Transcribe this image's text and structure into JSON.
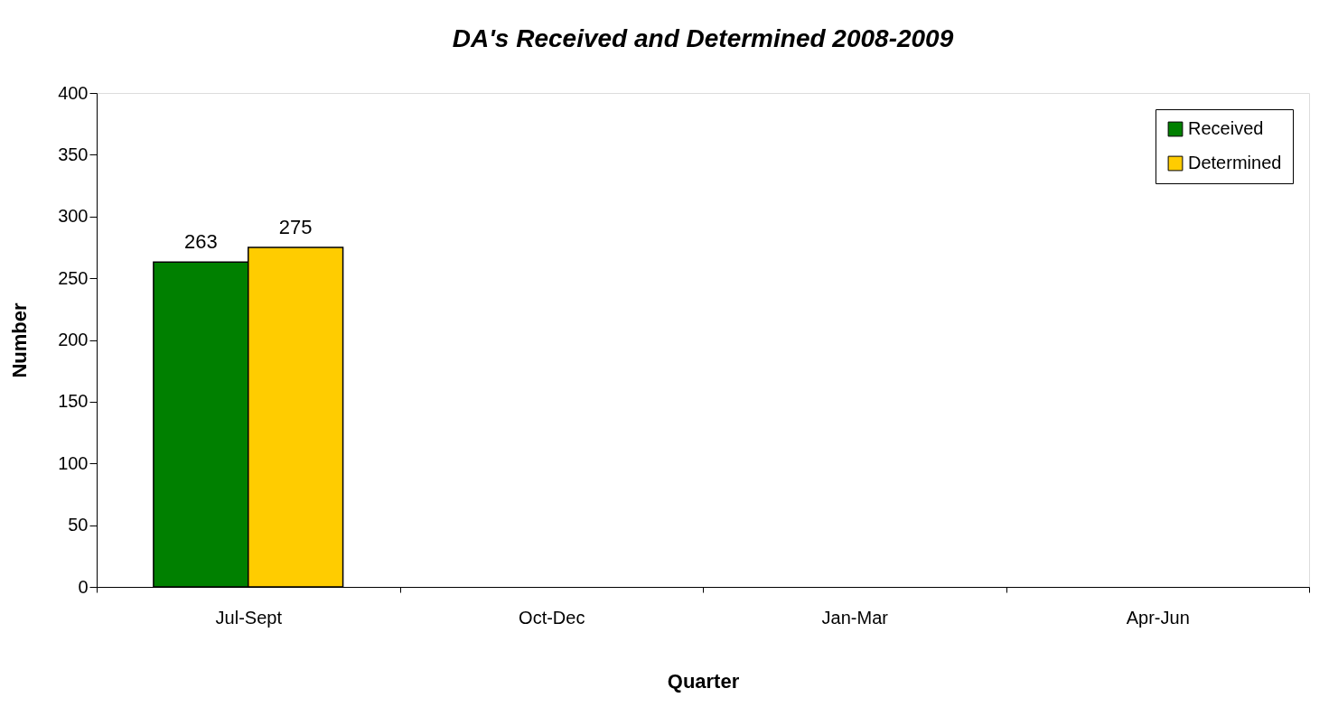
{
  "chart_data": {
    "type": "bar",
    "title": "DA's Received and Determined 2008-2009",
    "xlabel": "Quarter",
    "ylabel": "Number",
    "categories": [
      "Jul-Sept",
      "Oct-Dec",
      "Jan-Mar",
      "Apr-Jun"
    ],
    "series": [
      {
        "name": "Received",
        "color": "#008000",
        "values": [
          263,
          null,
          null,
          null
        ]
      },
      {
        "name": "Determined",
        "color": "#ffcc00",
        "values": [
          275,
          null,
          null,
          null
        ]
      }
    ],
    "ylim": [
      0,
      400
    ],
    "yticks": [
      0,
      50,
      100,
      150,
      200,
      250,
      300,
      350,
      400
    ],
    "grid": false,
    "legend": "top right",
    "data_labels": true
  }
}
